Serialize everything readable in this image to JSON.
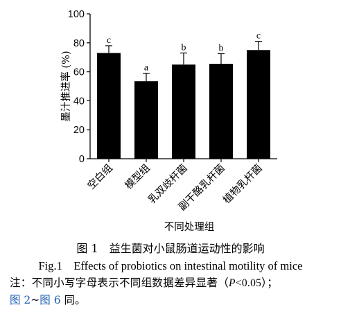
{
  "chart_data": {
    "type": "bar",
    "categories": [
      "空白组",
      "模型组",
      "乳双歧杆菌",
      "副干酪乳杆菌",
      "植物乳杆菌"
    ],
    "values": [
      73,
      53.5,
      65,
      65.5,
      75
    ],
    "errors": [
      5,
      5.5,
      8,
      7,
      6
    ],
    "significance": [
      "c",
      "a",
      "b",
      "b",
      "c"
    ],
    "ylabel": "墨汁推进率 (%)",
    "xlabel": "不同处理组",
    "ylim": [
      0,
      100
    ],
    "yticks": [
      0,
      20,
      40,
      60,
      80,
      100
    ],
    "bar_color": "#000000"
  },
  "caption": {
    "cn": "图 1　益生菌对小鼠肠道运动性的影响",
    "en": "Fig.1　Effects of probiotics on intestinal motility of mice"
  },
  "note": {
    "prefix": "注：不同小写字母表示不同组数据差异显著（",
    "p": "P",
    "cond": "<0.05）；",
    "line2_a": "图 2",
    "line2_sep": "~",
    "line2_b": "图 6",
    "line2_end": " 同。"
  }
}
